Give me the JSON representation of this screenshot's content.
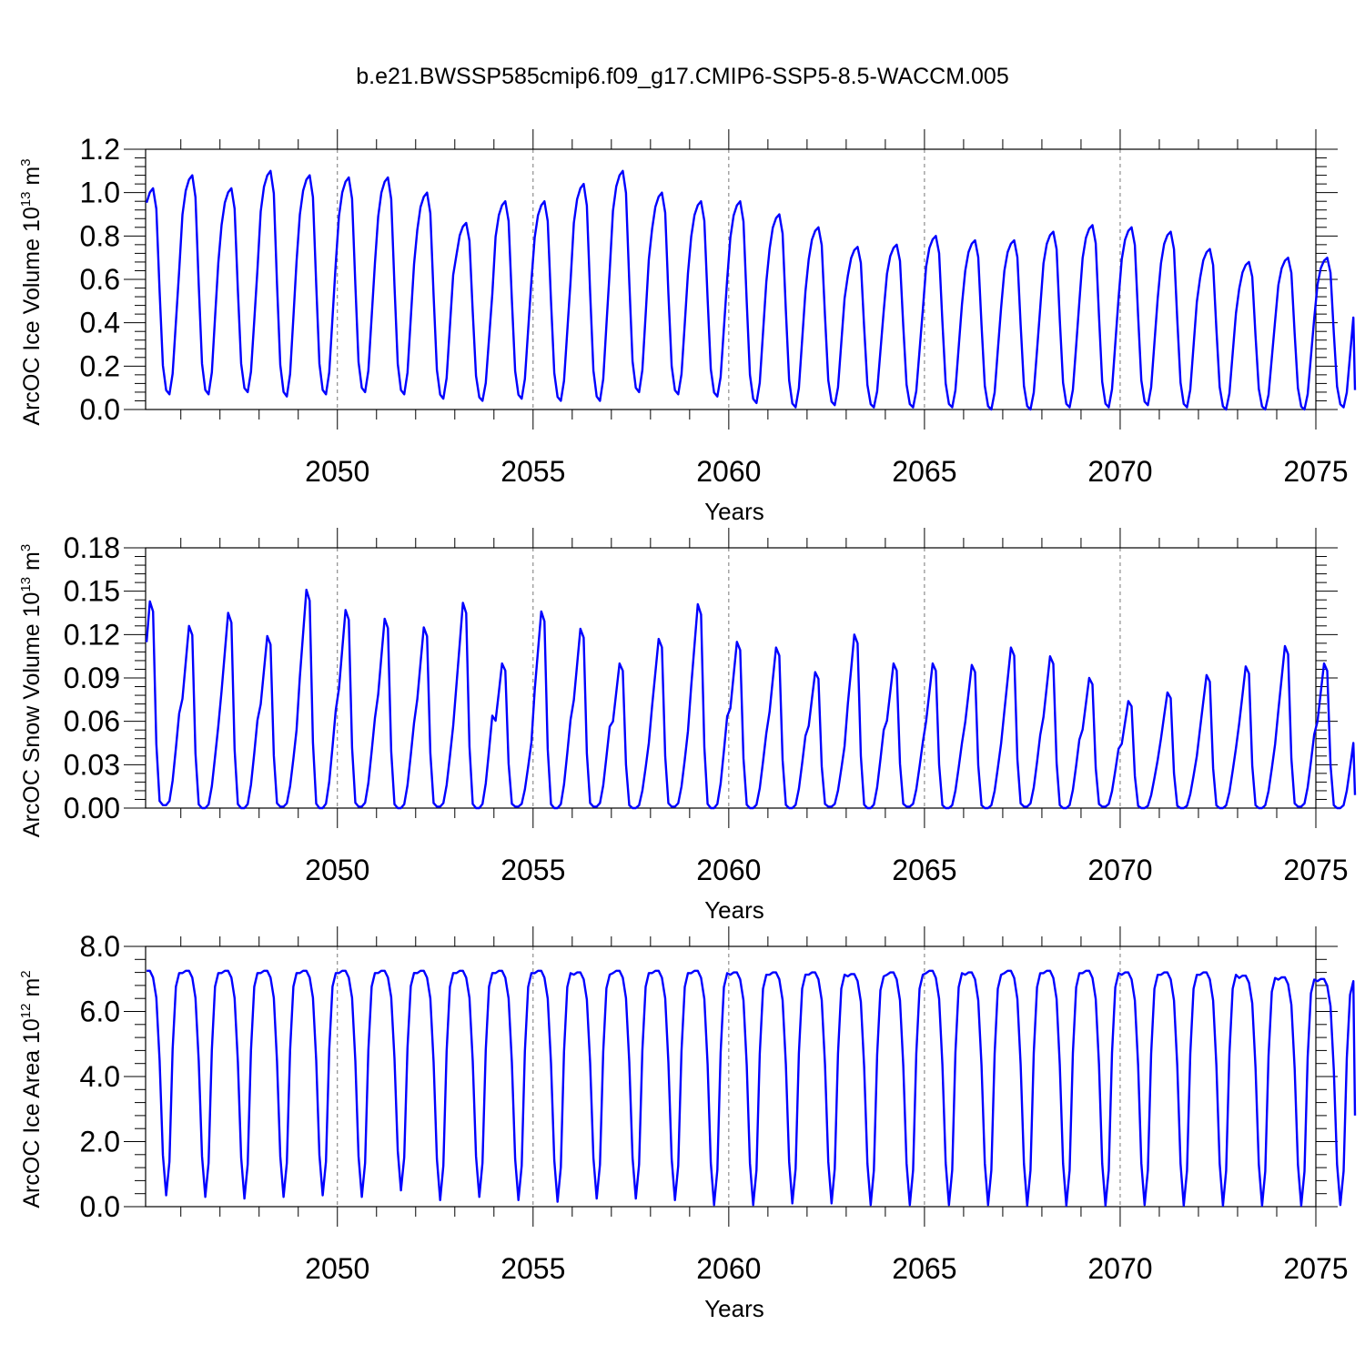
{
  "title": "b.e21.BWSSP585cmip6.f09_g17.CMIP6-SSP5-8.5-WACCM.005",
  "chart_data": [
    {
      "type": "line",
      "name": "ice-volume",
      "ylabel": "ArcOC Ice Volume 10",
      "ylabel_exp": "13",
      "ylabel_unit": " m",
      "ylabel_unit_exp": "3",
      "xlabel": "Years",
      "xlim": [
        2045.1,
        2075.0
      ],
      "ylim": [
        0,
        1.2
      ],
      "yticks": [
        0,
        0.2,
        0.4,
        0.6,
        0.8,
        1.0,
        1.2
      ],
      "ytick_labels": [
        "0.0",
        "0.2",
        "0.4",
        "0.6",
        "0.8",
        "1.0",
        "1.2"
      ],
      "xticks": [
        2050,
        2055,
        2060,
        2065,
        2070,
        2075
      ],
      "xtick_labels": [
        "2050",
        "2055",
        "2060",
        "2065",
        "2070",
        "2075"
      ],
      "series_color": "#0000ff",
      "seasonal_cycle": {
        "start_year": 2045,
        "start_month": 2,
        "month_shape": [
          0.82,
          0.93,
          0.98,
          1.0,
          0.9,
          0.5,
          0.14,
          0.02,
          0.0,
          0.1,
          0.35,
          0.6
        ],
        "annual_max": [
          1.02,
          1.08,
          1.02,
          1.1,
          1.08,
          1.07,
          1.07,
          1.0,
          0.86,
          0.96,
          0.96,
          1.04,
          1.1,
          1.0,
          0.96,
          0.96,
          0.9,
          0.84,
          0.75,
          0.76,
          0.8,
          0.78,
          0.78,
          0.82,
          0.85,
          0.84,
          0.82,
          0.74,
          0.68,
          0.7,
          0.7
        ],
        "annual_min": [
          0.07,
          0.07,
          0.08,
          0.06,
          0.07,
          0.08,
          0.07,
          0.05,
          0.04,
          0.05,
          0.04,
          0.04,
          0.08,
          0.07,
          0.06,
          0.03,
          0.01,
          0.02,
          0.01,
          0.01,
          0.01,
          0.0,
          0.0,
          0.01,
          0.01,
          0.02,
          0.01,
          0.0,
          0.0,
          0.0,
          0.01
        ],
        "end_value": 0.09
      }
    },
    {
      "type": "line",
      "name": "snow-volume",
      "ylabel": "ArcOC Snow Volume 10",
      "ylabel_exp": "13",
      "ylabel_unit": " m",
      "ylabel_unit_exp": "3",
      "xlabel": "Years",
      "xlim": [
        2045.1,
        2075.0
      ],
      "ylim": [
        0,
        0.18
      ],
      "yticks": [
        0,
        0.03,
        0.06,
        0.09,
        0.12,
        0.15,
        0.18
      ],
      "ytick_labels": [
        "0.00",
        "0.03",
        "0.06",
        "0.09",
        "0.12",
        "0.15",
        "0.18"
      ],
      "xticks": [
        2050,
        2055,
        2060,
        2065,
        2070,
        2075
      ],
      "xtick_labels": [
        "2050",
        "2055",
        "2060",
        "2065",
        "2070",
        "2075"
      ],
      "series_color": "#0000ff",
      "seasonal_cycle": {
        "start_year": 2045,
        "start_month": 2,
        "month_shape": [
          0.6,
          0.8,
          1.0,
          0.95,
          0.3,
          0.02,
          0.0,
          0.0,
          0.02,
          0.12,
          0.28,
          0.45
        ],
        "annual_max": [
          0.143,
          0.126,
          0.135,
          0.119,
          0.151,
          0.137,
          0.131,
          0.125,
          0.142,
          0.1,
          0.136,
          0.124,
          0.1,
          0.117,
          0.141,
          0.115,
          0.111,
          0.094,
          0.12,
          0.1,
          0.1,
          0.099,
          0.111,
          0.105,
          0.09,
          0.074,
          0.08,
          0.092,
          0.098,
          0.112,
          0.1
        ],
        "annual_min": [
          0.002,
          0.0,
          0.0,
          0.001,
          0.0,
          0.001,
          0.0,
          0.001,
          0.0,
          0.001,
          0.0,
          0.001,
          0.0,
          0.001,
          0.0,
          0.0,
          0.0,
          0.001,
          0.0,
          0.001,
          0.0,
          0.0,
          0.001,
          0.0,
          0.001,
          0.0,
          0.0,
          0.0,
          0.0,
          0.001,
          0.0
        ],
        "end_value": 0.009
      }
    },
    {
      "type": "line",
      "name": "ice-area",
      "ylabel": "ArcOC Ice Area 10",
      "ylabel_exp": "12",
      "ylabel_unit": " m",
      "ylabel_unit_exp": "2",
      "xlabel": "Years",
      "xlim": [
        2045.1,
        2075.0
      ],
      "ylim": [
        0,
        8.0
      ],
      "yticks": [
        0,
        2,
        4,
        6,
        8
      ],
      "ytick_labels": [
        "0.0",
        "2.0",
        "4.0",
        "6.0",
        "8.0"
      ],
      "xticks": [
        2050,
        2055,
        2060,
        2065,
        2070,
        2075
      ],
      "xtick_labels": [
        "2050",
        "2055",
        "2060",
        "2065",
        "2070",
        "2075"
      ],
      "series_color": "#0000ff",
      "seasonal_cycle": {
        "start_year": 2045,
        "start_month": 2,
        "month_shape": [
          0.99,
          1.0,
          1.0,
          0.97,
          0.88,
          0.6,
          0.18,
          0.0,
          0.15,
          0.65,
          0.93,
          0.99
        ],
        "annual_max": [
          7.25,
          7.25,
          7.25,
          7.25,
          7.25,
          7.25,
          7.25,
          7.25,
          7.25,
          7.25,
          7.25,
          7.2,
          7.25,
          7.25,
          7.25,
          7.2,
          7.2,
          7.2,
          7.15,
          7.2,
          7.25,
          7.2,
          7.25,
          7.25,
          7.25,
          7.2,
          7.2,
          7.2,
          7.1,
          7.05,
          7.0
        ],
        "annual_min": [
          0.35,
          0.3,
          0.25,
          0.3,
          0.35,
          0.3,
          0.5,
          0.2,
          0.3,
          0.2,
          0.15,
          0.25,
          0.25,
          0.2,
          0.05,
          0.05,
          0.1,
          0.1,
          0.05,
          0.05,
          0.05,
          0.05,
          0.03,
          0.03,
          0.03,
          0.05,
          0.03,
          0.03,
          0.03,
          0.03,
          0.05
        ],
        "end_value": 2.8
      }
    }
  ]
}
